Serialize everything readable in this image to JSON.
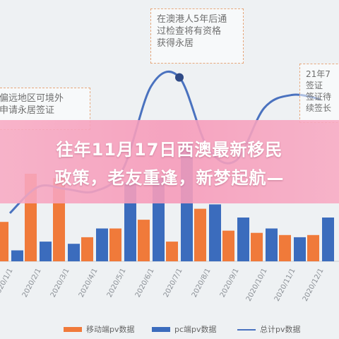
{
  "chart_data": {
    "type": "bar",
    "categories": [
      "2020/1/1",
      "2020/2/1",
      "2020/3/1",
      "2020/4/1",
      "2020/5/1",
      "2020/6/1",
      "2020/7/1",
      "2020/8/1",
      "2020/9/1",
      "2020/10/1",
      "2020/11/1",
      "2020/12/1"
    ],
    "series": [
      {
        "name": "移动端pv数据",
        "kind": "bar",
        "color": "#f07a3a",
        "values": [
          18,
          40,
          38,
          11,
          15,
          19,
          9,
          24,
          14,
          13,
          12,
          12
        ]
      },
      {
        "name": "pc端pv数据",
        "kind": "bar",
        "color": "#3b6cbd",
        "values": [
          5,
          9,
          8,
          15,
          36,
          38,
          54,
          26,
          20,
          15,
          11,
          20
        ]
      },
      {
        "name": "总计pv数据",
        "kind": "line",
        "color": "#4a72bf",
        "values": [
          22,
          34,
          33,
          32,
          42,
          80,
          84,
          52,
          46,
          70,
          76,
          74
        ]
      }
    ],
    "title": "",
    "xlabel": "",
    "ylabel": "",
    "ylim": [
      0,
      100
    ],
    "grid": false,
    "legend": "bottom"
  },
  "annotations": [
    {
      "lines": [
        "在澳港人5年后通",
        "过检查将有资格",
        "获得永居"
      ]
    },
    {
      "lines": [
        "偏远地区可境外",
        "申请永居签证"
      ]
    },
    {
      "lines": [
        "21年7",
        "签证",
        "签证待",
        "续签长"
      ]
    }
  ],
  "banner": {
    "line1": "往年11月17日西澳最新移民",
    "line2": "政策，老友重逢，新梦起航—"
  }
}
